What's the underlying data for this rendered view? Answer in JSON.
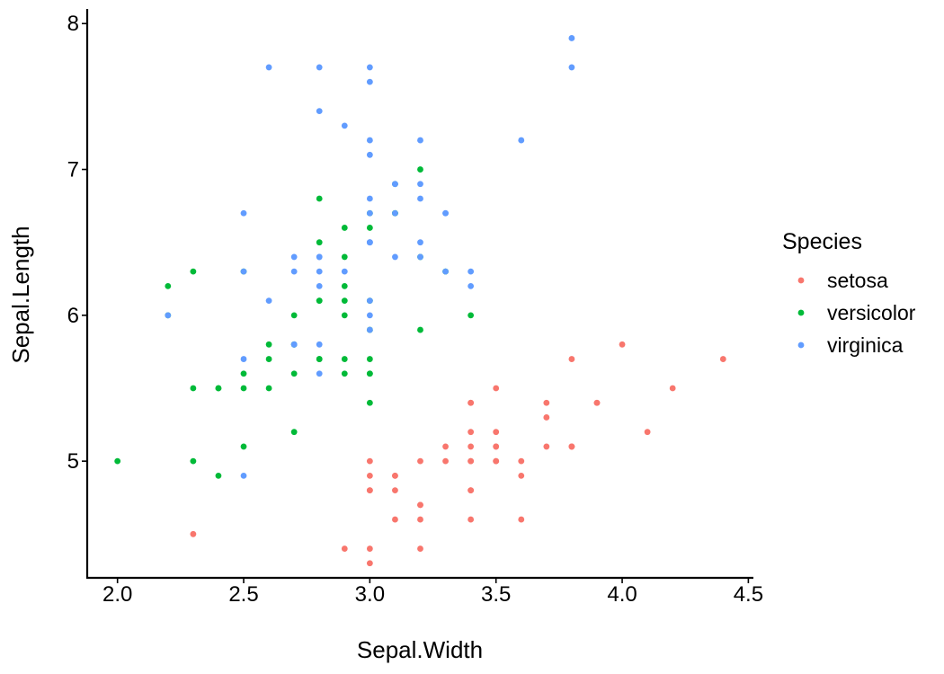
{
  "chart_data": {
    "type": "scatter",
    "title": "",
    "xlabel": "Sepal.Width",
    "ylabel": "Sepal.Length",
    "xlim": [
      1.88,
      4.52
    ],
    "ylim": [
      4.2,
      8.1
    ],
    "x_ticks": [
      2.0,
      2.5,
      3.0,
      3.5,
      4.0,
      4.5
    ],
    "x_tick_labels": [
      "2.0",
      "2.5",
      "3.0",
      "3.5",
      "4.0",
      "4.5"
    ],
    "y_ticks": [
      5,
      6,
      7,
      8
    ],
    "y_tick_labels": [
      "5",
      "6",
      "7",
      "8"
    ],
    "grid": false,
    "legend": {
      "title": "Species",
      "placement": "right"
    },
    "series": [
      {
        "name": "setosa",
        "color": "#F8766D",
        "x": [
          3.5,
          3.0,
          3.2,
          3.1,
          3.6,
          3.9,
          3.4,
          3.4,
          2.9,
          3.1,
          3.7,
          3.4,
          3.0,
          3.0,
          4.0,
          4.4,
          3.9,
          3.5,
          3.8,
          3.8,
          3.4,
          3.7,
          3.6,
          3.3,
          3.4,
          3.0,
          3.4,
          3.5,
          3.4,
          3.2,
          3.1,
          3.4,
          4.1,
          4.2,
          3.1,
          3.2,
          3.5,
          3.6,
          3.0,
          3.4,
          3.5,
          2.3,
          3.2,
          3.5,
          3.8,
          3.0,
          3.8,
          3.2,
          3.7,
          3.3
        ],
        "y": [
          5.1,
          4.9,
          4.7,
          4.6,
          5.0,
          5.4,
          4.6,
          5.0,
          4.4,
          4.9,
          5.4,
          4.8,
          4.8,
          4.3,
          5.8,
          5.7,
          5.4,
          5.1,
          5.7,
          5.1,
          5.4,
          5.1,
          4.6,
          5.1,
          4.8,
          5.0,
          5.0,
          5.2,
          5.2,
          4.7,
          4.8,
          5.4,
          5.2,
          5.5,
          4.9,
          5.0,
          5.5,
          4.9,
          4.4,
          5.1,
          5.0,
          4.5,
          4.4,
          5.0,
          5.1,
          4.8,
          5.1,
          4.6,
          5.3,
          5.0
        ]
      },
      {
        "name": "versicolor",
        "color": "#00BA38",
        "x": [
          3.2,
          3.2,
          3.1,
          2.3,
          2.8,
          2.8,
          3.3,
          2.4,
          2.9,
          2.7,
          2.0,
          3.0,
          2.2,
          2.9,
          2.9,
          3.1,
          3.0,
          2.7,
          2.2,
          2.5,
          3.2,
          2.8,
          2.5,
          2.8,
          2.9,
          3.0,
          2.8,
          3.0,
          2.9,
          2.6,
          2.4,
          2.4,
          2.7,
          2.7,
          3.0,
          3.4,
          3.1,
          2.3,
          3.0,
          2.5,
          2.6,
          3.0,
          2.6,
          2.3,
          2.7,
          3.0,
          2.9,
          2.9,
          2.5,
          2.8
        ],
        "y": [
          7.0,
          6.4,
          6.9,
          5.5,
          6.5,
          5.7,
          6.3,
          4.9,
          6.6,
          5.2,
          5.0,
          5.9,
          6.0,
          6.1,
          5.6,
          6.7,
          5.6,
          5.8,
          6.2,
          5.6,
          5.9,
          6.1,
          6.3,
          6.1,
          6.4,
          6.6,
          6.8,
          6.7,
          6.0,
          5.7,
          5.5,
          5.5,
          5.8,
          6.0,
          5.4,
          6.0,
          6.7,
          6.3,
          5.6,
          5.5,
          5.5,
          6.1,
          5.8,
          5.0,
          5.6,
          5.7,
          5.7,
          6.2,
          5.1,
          5.7
        ]
      },
      {
        "name": "virginica",
        "color": "#619CFF",
        "x": [
          3.3,
          2.7,
          3.0,
          2.9,
          3.0,
          3.0,
          2.5,
          2.9,
          2.5,
          3.6,
          3.2,
          2.7,
          3.0,
          2.5,
          2.8,
          3.2,
          3.0,
          3.8,
          2.6,
          2.2,
          3.2,
          2.8,
          2.8,
          2.7,
          3.3,
          3.2,
          2.8,
          3.0,
          2.8,
          3.0,
          2.8,
          3.8,
          2.8,
          2.8,
          2.6,
          3.0,
          3.4,
          3.1,
          3.0,
          3.1,
          3.1,
          3.1,
          2.7,
          3.2,
          3.3,
          3.0,
          2.5,
          3.0,
          3.4,
          3.0
        ],
        "y": [
          6.3,
          5.8,
          7.1,
          6.3,
          6.5,
          7.6,
          4.9,
          7.3,
          6.7,
          7.2,
          6.5,
          6.4,
          6.8,
          5.7,
          5.8,
          6.4,
          6.5,
          7.7,
          7.7,
          6.0,
          6.9,
          5.6,
          7.7,
          6.3,
          6.7,
          7.2,
          6.2,
          6.1,
          6.4,
          7.2,
          7.4,
          7.9,
          6.4,
          6.3,
          6.1,
          7.7,
          6.3,
          6.4,
          6.0,
          6.9,
          6.7,
          6.9,
          5.8,
          6.8,
          6.7,
          6.7,
          6.3,
          6.5,
          6.2,
          5.9
        ]
      }
    ]
  }
}
